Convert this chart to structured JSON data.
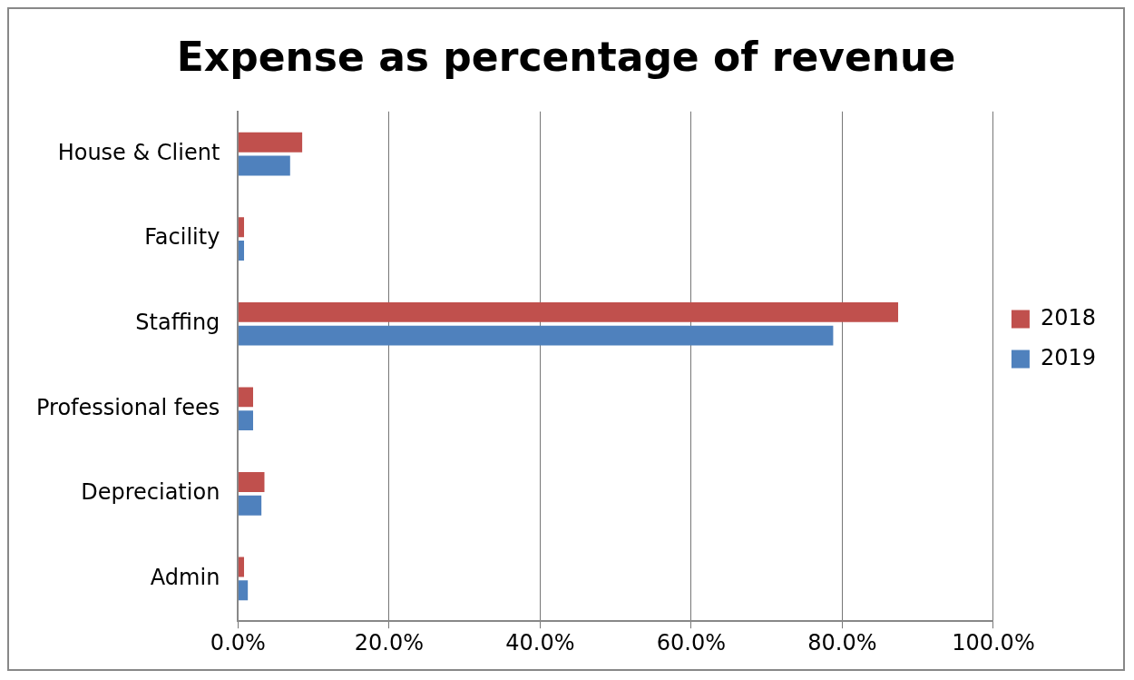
{
  "chart_data": {
    "type": "bar",
    "orientation": "horizontal",
    "title": "Expense as percentage of revenue",
    "categories": [
      "House & Client",
      "Facility",
      "Staffing",
      "Professional fees",
      "Depreciation",
      "Admin"
    ],
    "series": [
      {
        "name": "2018",
        "color": "#c0504d",
        "values": [
          8.5,
          0.8,
          87.4,
          2.0,
          3.5,
          0.8
        ]
      },
      {
        "name": "2019",
        "color": "#4f81bd",
        "values": [
          6.9,
          0.8,
          78.8,
          2.0,
          3.1,
          1.3
        ]
      }
    ],
    "xlim": [
      0,
      100
    ],
    "xticks": [
      {
        "value": 0,
        "label": "0.0%"
      },
      {
        "value": 20,
        "label": "20.0%"
      },
      {
        "value": 40,
        "label": "40.0%"
      },
      {
        "value": 60,
        "label": "60.0%"
      },
      {
        "value": 80,
        "label": "80.0%"
      },
      {
        "value": 100,
        "label": "100.0%"
      }
    ],
    "grid": "x",
    "legend": "right"
  }
}
